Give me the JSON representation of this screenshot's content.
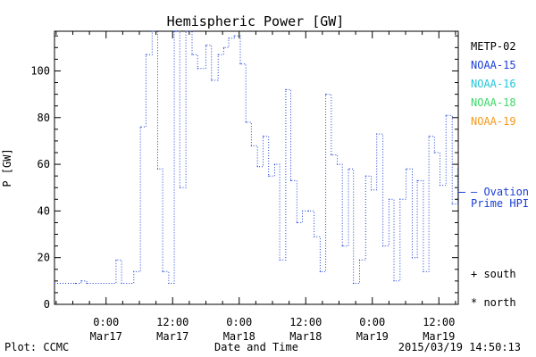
{
  "chart_data": {
    "type": "line",
    "title": "Hemispheric Power [GW]",
    "xlabel": "Date and Time",
    "ylabel": "P [GW]",
    "ylim": [
      0,
      117
    ],
    "yticks": [
      0,
      20,
      40,
      60,
      80,
      100
    ],
    "xlim_hours": [
      -9.3,
      63.5
    ],
    "xticks": [
      {
        "hours": 0,
        "time": "0:00",
        "date": "Mar17"
      },
      {
        "hours": 12,
        "time": "12:00",
        "date": "Mar17"
      },
      {
        "hours": 24,
        "time": "0:00",
        "date": "Mar18"
      },
      {
        "hours": 36,
        "time": "12:00",
        "date": "Mar18"
      },
      {
        "hours": 48,
        "time": "0:00",
        "date": "Mar19"
      },
      {
        "hours": 60,
        "time": "12:00",
        "date": "Mar19"
      }
    ],
    "grid": false,
    "legend": {
      "placement": "right",
      "entries": [
        {
          "name": "METP-02",
          "color": "#000000"
        },
        {
          "name": "NOAA-15",
          "color": "#1a3fd6"
        },
        {
          "name": "NOAA-16",
          "color": "#22c7d8"
        },
        {
          "name": "NOAA-18",
          "color": "#3cd96a"
        },
        {
          "name": "NOAA-19",
          "color": "#f39a1e"
        }
      ]
    },
    "annotations": {
      "ovation_label_1": "— Ovation",
      "ovation_label_2": "Prime HPI",
      "ovation_value": 48,
      "south": "+ south",
      "north": "* north"
    },
    "series": [
      {
        "name": "NOAA-15",
        "color": "#1a3fd6",
        "style": "step-dotted",
        "x": [
          -9.3,
          -5.5,
          -4.5,
          -3.5,
          1.8,
          2.8,
          5.0,
          6.2,
          7.2,
          8.3,
          9.3,
          10.2,
          11.3,
          12.3,
          13.3,
          14.4,
          15.5,
          16.5,
          18.0,
          19.0,
          20.2,
          21.2,
          22.1,
          23.1,
          24.2,
          25.2,
          26.2,
          27.3,
          28.3,
          29.3,
          30.4,
          31.3,
          32.4,
          33.3,
          34.4,
          35.4,
          36.5,
          37.5,
          38.6,
          39.6,
          40.6,
          41.7,
          42.6,
          43.7,
          44.6,
          45.7,
          46.8,
          47.8,
          48.8,
          49.9,
          51.0,
          51.9,
          53.0,
          54.1,
          55.2,
          56.1,
          57.2,
          58.2,
          59.2,
          60.2,
          61.3,
          62.4,
          63.4
        ],
        "y": [
          9,
          9,
          10,
          9,
          19,
          9,
          14,
          76,
          107,
          117,
          58,
          14,
          9,
          117,
          50,
          117,
          107,
          101,
          111,
          96,
          107,
          110,
          114,
          115,
          103,
          78,
          68,
          59,
          72,
          55,
          60,
          19,
          92,
          53,
          35,
          40,
          40,
          29,
          14,
          90,
          64,
          60,
          25,
          58,
          9,
          19,
          55,
          49,
          73,
          25,
          45,
          10,
          45,
          58,
          20,
          53,
          14,
          72,
          65,
          51,
          81,
          43,
          58
        ]
      }
    ]
  },
  "footer": {
    "left": "Plot: CCMC",
    "right": "2015/03/19 14:50:13"
  }
}
